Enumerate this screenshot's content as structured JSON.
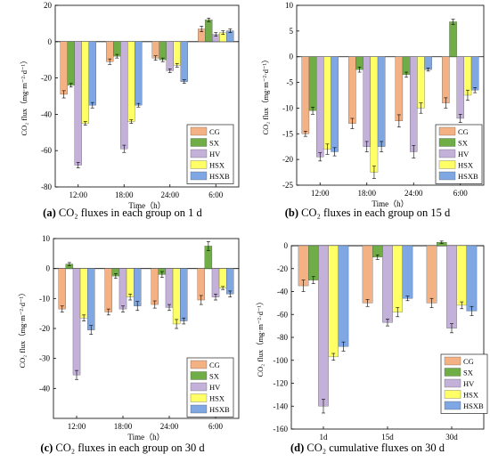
{
  "chart_data": [
    {
      "id": "a",
      "type": "bar",
      "caption_letter": "(a)",
      "caption_text": "CO₂ fluxes in each group on 1 d",
      "xlabel": "Time（h）",
      "ylabel": "CO₂ flux（mg·m⁻²·d⁻¹）",
      "categories": [
        "12:00",
        "18:00",
        "24:00",
        "6:00"
      ],
      "ylim": [
        -80,
        20
      ],
      "yticks": [
        -80,
        -60,
        -40,
        -20,
        0,
        20
      ],
      "legend_position": "bottom-right",
      "series": [
        {
          "name": "CG",
          "color": "#F4B183",
          "values": [
            -29,
            -11,
            -9,
            7
          ],
          "errors": [
            2,
            1.5,
            1.2,
            1.5
          ]
        },
        {
          "name": "SX",
          "color": "#70AD47",
          "values": [
            -24,
            -8,
            -10,
            12
          ],
          "errors": [
            1,
            1,
            1,
            1
          ]
        },
        {
          "name": "HV",
          "color": "#C3B1D9",
          "values": [
            -68,
            -59,
            -16,
            4
          ],
          "errors": [
            1.5,
            2,
            1,
            1
          ]
        },
        {
          "name": "HSX",
          "color": "#FFFF66",
          "values": [
            -45,
            -44,
            -13,
            5
          ],
          "errors": [
            1,
            1,
            1,
            1
          ]
        },
        {
          "name": "HSXB",
          "color": "#7FA7E3",
          "values": [
            -35,
            -35,
            -22,
            6
          ],
          "errors": [
            1.5,
            1,
            1,
            1
          ]
        }
      ]
    },
    {
      "id": "b",
      "type": "bar",
      "caption_letter": "(b)",
      "caption_text": "CO₂ fluxes in each group on 15 d",
      "xlabel": "Time（h）",
      "ylabel": "CO₂ flux（mg·m⁻²·d⁻¹）",
      "categories": [
        "12:00",
        "18:00",
        "24:00",
        "6:00"
      ],
      "ylim": [
        -25,
        10
      ],
      "yticks": [
        -25,
        -20,
        -15,
        -10,
        -5,
        0,
        5,
        10
      ],
      "legend_position": "bottom-right",
      "series": [
        {
          "name": "CG",
          "color": "#F4B183",
          "values": [
            -15,
            -13,
            -12.5,
            -9
          ],
          "errors": [
            0.5,
            1,
            1.2,
            1
          ]
        },
        {
          "name": "SX",
          "color": "#70AD47",
          "values": [
            -10.5,
            -2.5,
            -3.5,
            6.8
          ],
          "errors": [
            0.7,
            0.5,
            0.5,
            0.5
          ]
        },
        {
          "name": "HV",
          "color": "#C3B1D9",
          "values": [
            -19.5,
            -17.5,
            -18.5,
            -12
          ],
          "errors": [
            0.8,
            1,
            1.2,
            0.8
          ]
        },
        {
          "name": "HSX",
          "color": "#FFFF66",
          "values": [
            -18,
            -22.5,
            -10,
            -7.5
          ],
          "errors": [
            1,
            1.2,
            1,
            1
          ]
        },
        {
          "name": "HSXB",
          "color": "#7FA7E3",
          "values": [
            -18.5,
            -17.5,
            -2.5,
            -6.5
          ],
          "errors": [
            0.8,
            1,
            0.3,
            0.5
          ]
        }
      ]
    },
    {
      "id": "c",
      "type": "bar",
      "caption_letter": "(c)",
      "caption_text": "CO₂ fluxes in each group on 30 d",
      "xlabel": "Time（h）",
      "ylabel": "CO₂ flux（mg·m⁻²·d⁻¹）",
      "categories": [
        "12:00",
        "18:00",
        "24:00",
        "6:00"
      ],
      "ylim": [
        -50,
        10
      ],
      "yticks": [
        -40,
        -30,
        -20,
        -10,
        0,
        10
      ],
      "legend_position": "bottom-right",
      "series": [
        {
          "name": "CG",
          "color": "#F4B183",
          "values": [
            -13.5,
            -14.5,
            -12,
            -10.5
          ],
          "errors": [
            1,
            1,
            1.2,
            1.5
          ]
        },
        {
          "name": "SX",
          "color": "#70AD47",
          "values": [
            1.5,
            -2.5,
            -2,
            7.5
          ],
          "errors": [
            0.5,
            0.8,
            1,
            1.5
          ]
        },
        {
          "name": "HV",
          "color": "#C3B1D9",
          "values": [
            -35.5,
            -13.5,
            -13,
            -9.5
          ],
          "errors": [
            1.5,
            1,
            1,
            1
          ]
        },
        {
          "name": "HSX",
          "color": "#FFFF66",
          "values": [
            -16.5,
            -9.5,
            -18.5,
            -6.5
          ],
          "errors": [
            1,
            1,
            1.5,
            0.5
          ]
        },
        {
          "name": "HSXB",
          "color": "#7FA7E3",
          "values": [
            -20.5,
            -12.5,
            -17.5,
            -8.5
          ],
          "errors": [
            1.5,
            1.5,
            1,
            1
          ]
        }
      ]
    },
    {
      "id": "d",
      "type": "bar",
      "caption_letter": "(d)",
      "caption_text": "CO₂ cumulative fluxes on 30 d",
      "xlabel": "",
      "ylabel": "CO₂ flux（mg·m⁻²·d⁻¹）",
      "categories": [
        "1d",
        "15d",
        "30d"
      ],
      "ylim": [
        -160,
        0
      ],
      "yticks": [
        -160,
        -140,
        -120,
        -100,
        -80,
        -60,
        -40,
        -20,
        0
      ],
      "legend_position": "bottom-right",
      "series": [
        {
          "name": "CG",
          "color": "#F4B183",
          "values": [
            -35,
            -50,
            -50
          ],
          "errors": [
            5,
            3,
            4
          ]
        },
        {
          "name": "SX",
          "color": "#70AD47",
          "values": [
            -30,
            -10,
            3
          ],
          "errors": [
            3,
            2,
            1
          ]
        },
        {
          "name": "HV",
          "color": "#C3B1D9",
          "values": [
            -140,
            -67,
            -72
          ],
          "errors": [
            6,
            3,
            4
          ]
        },
        {
          "name": "HSX",
          "color": "#FFFF66",
          "values": [
            -97,
            -58,
            -52
          ],
          "errors": [
            3,
            4,
            3
          ]
        },
        {
          "name": "HSXB",
          "color": "#7FA7E3",
          "values": [
            -88,
            -46,
            -57
          ],
          "errors": [
            4,
            2,
            4
          ]
        }
      ]
    }
  ]
}
